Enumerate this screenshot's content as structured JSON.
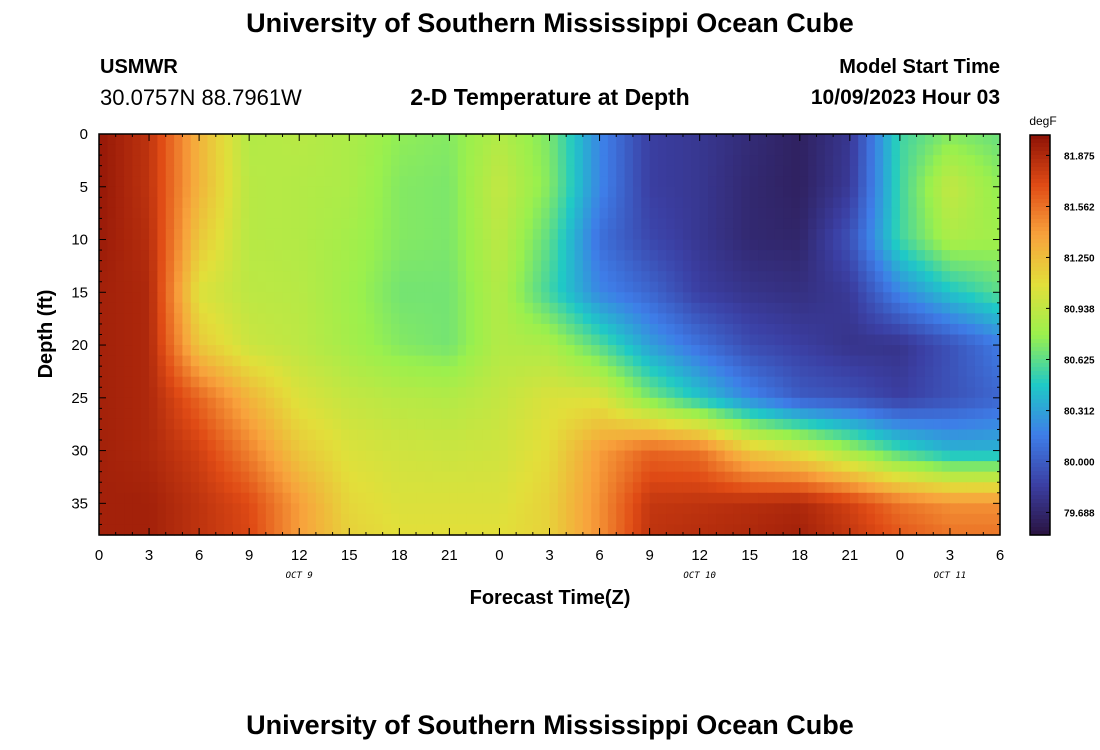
{
  "header": {
    "title": "University of Southern Mississippi Ocean Cube",
    "station": "USMWR",
    "coords": "30.0757N  88.7961W",
    "subtitle": "2-D Temperature at Depth",
    "model_label": "Model Start Time",
    "model_time": "10/09/2023 Hour 03"
  },
  "footer": {
    "title": "University of Southern Mississippi Ocean Cube"
  },
  "colors": {
    "scale": [
      "#2a1340",
      "#3b3fa3",
      "#3e7de8",
      "#1fc9c6",
      "#9af04d",
      "#e2df3a",
      "#f8a23c",
      "#e04b15",
      "#8d1206"
    ]
  },
  "chart_data": {
    "type": "heatmap",
    "xlabel": "Forecast Time(Z)",
    "ylabel": "Depth (ft)",
    "x_ticks": [
      "0",
      "3",
      "6",
      "9",
      "12",
      "15",
      "18",
      "21",
      "0",
      "3",
      "6",
      "9",
      "12",
      "15",
      "18",
      "21",
      "0",
      "3",
      "6"
    ],
    "x_tick_hours": [
      0,
      3,
      6,
      9,
      12,
      15,
      18,
      21,
      24,
      27,
      30,
      33,
      36,
      39,
      42,
      45,
      48,
      51,
      54
    ],
    "x_range_hours": [
      0,
      54
    ],
    "date_labels": [
      {
        "text": "OCT 9",
        "hour": 12
      },
      {
        "text": "OCT 10",
        "hour": 36
      },
      {
        "text": "OCT 11",
        "hour": 51
      }
    ],
    "y_ticks": [
      0,
      5,
      10,
      15,
      20,
      25,
      30,
      35
    ],
    "y_range_ft": [
      0,
      38
    ],
    "colorbar": {
      "unit": "degF",
      "labels": [
        "81.875",
        "81.562",
        "81.250",
        "80.938",
        "80.625",
        "80.312",
        "80.000",
        "79.688"
      ],
      "range": [
        79.55,
        82.0
      ]
    },
    "grid_hours": [
      0,
      3,
      6,
      9,
      12,
      15,
      18,
      21,
      24,
      27,
      30,
      33,
      36,
      39,
      42,
      45,
      48,
      51,
      54
    ],
    "grid_depths": [
      0,
      5,
      10,
      15,
      20,
      25,
      30,
      35,
      38
    ],
    "values": [
      [
        81.97,
        81.82,
        81.3,
        80.88,
        80.9,
        80.85,
        80.75,
        80.72,
        80.88,
        80.7,
        80.2,
        79.85,
        79.8,
        79.72,
        79.65,
        79.8,
        80.55,
        80.72,
        80.65
      ],
      [
        81.97,
        81.82,
        81.3,
        80.9,
        80.88,
        80.85,
        80.72,
        80.7,
        80.95,
        80.72,
        80.2,
        79.85,
        79.8,
        79.7,
        79.65,
        79.82,
        80.55,
        80.95,
        80.75
      ],
      [
        81.95,
        81.85,
        81.2,
        80.9,
        80.88,
        80.82,
        80.72,
        80.7,
        80.92,
        80.62,
        80.1,
        79.9,
        79.8,
        79.7,
        79.68,
        79.95,
        80.55,
        80.85,
        80.8
      ],
      [
        81.92,
        81.88,
        81.05,
        80.92,
        80.9,
        80.8,
        80.68,
        80.68,
        80.88,
        80.55,
        80.2,
        80.05,
        79.85,
        79.78,
        79.75,
        79.82,
        80.2,
        80.45,
        80.62
      ],
      [
        81.92,
        81.88,
        81.2,
        80.98,
        80.92,
        80.82,
        80.72,
        80.68,
        80.88,
        80.85,
        80.6,
        80.3,
        80.1,
        79.92,
        79.85,
        79.78,
        79.78,
        79.95,
        80.15
      ],
      [
        81.92,
        81.88,
        81.6,
        81.3,
        81.05,
        80.95,
        80.9,
        80.88,
        80.95,
        81.05,
        81.05,
        80.7,
        80.45,
        80.2,
        80.0,
        79.95,
        79.85,
        79.95,
        80.05
      ],
      [
        81.92,
        81.88,
        81.75,
        81.5,
        81.2,
        81.05,
        81.0,
        80.98,
        81.0,
        81.1,
        81.4,
        81.6,
        81.55,
        81.2,
        81.05,
        80.8,
        80.55,
        80.38,
        80.38
      ],
      [
        81.92,
        81.92,
        81.82,
        81.7,
        81.4,
        81.12,
        81.05,
        81.05,
        81.05,
        81.15,
        81.45,
        81.8,
        81.82,
        81.85,
        81.88,
        81.75,
        81.55,
        81.45,
        81.45
      ],
      [
        81.92,
        81.92,
        81.82,
        81.72,
        81.4,
        81.15,
        81.08,
        81.08,
        81.08,
        81.15,
        81.45,
        81.82,
        81.85,
        81.88,
        81.92,
        81.8,
        81.65,
        81.55,
        81.55
      ]
    ]
  }
}
